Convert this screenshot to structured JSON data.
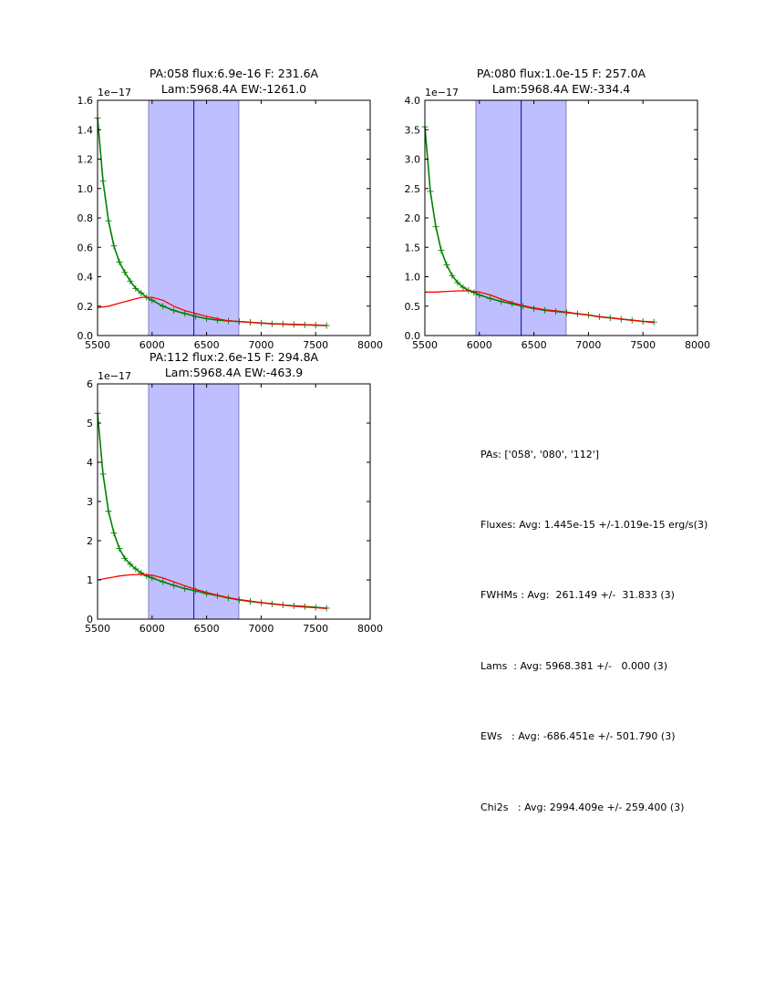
{
  "chart_data": [
    {
      "type": "line",
      "title_line1": "PA:058 flux:6.9e-16 F: 231.6A",
      "title_line2": "Lam:5968.4A EW:-1261.0",
      "offset_label": "1e−17",
      "xlim": [
        5500,
        8000
      ],
      "ylim": [
        0,
        1.6
      ],
      "xticks": [
        "5500",
        "6000",
        "6500",
        "7000",
        "7500",
        "8000"
      ],
      "xtick_values": [
        5500,
        6000,
        6500,
        7000,
        7500,
        8000
      ],
      "yticks": [
        "0.0",
        "0.2",
        "0.4",
        "0.6",
        "0.8",
        "1.0",
        "1.2",
        "1.4",
        "1.6"
      ],
      "ytick_values": [
        0,
        0.2,
        0.4,
        0.6,
        0.8,
        1.0,
        1.2,
        1.4,
        1.6
      ],
      "band": [
        5968,
        6795
      ],
      "center_line": 6383,
      "series": [
        {
          "name": "data",
          "color": "#008000",
          "x": [
            5500,
            5550,
            5600,
            5650,
            5700,
            5750,
            5800,
            5850,
            5900,
            5950,
            6000,
            6100,
            6200,
            6300,
            6400,
            6500,
            6600,
            6700,
            6800,
            6900,
            7000,
            7100,
            7200,
            7300,
            7400,
            7500,
            7600
          ],
          "y": [
            1.48,
            1.05,
            0.78,
            0.61,
            0.5,
            0.43,
            0.37,
            0.32,
            0.29,
            0.26,
            0.24,
            0.2,
            0.17,
            0.15,
            0.13,
            0.115,
            0.105,
            0.1,
            0.095,
            0.09,
            0.085,
            0.08,
            0.078,
            0.075,
            0.073,
            0.07,
            0.068
          ]
        },
        {
          "name": "model",
          "color": "#ff0000",
          "x": [
            5500,
            5600,
            5700,
            5800,
            5900,
            6000,
            6100,
            6200,
            6300,
            6400,
            6500,
            6600,
            6700,
            6800,
            6900,
            7000,
            7100,
            7200,
            7300,
            7400,
            7500,
            7600
          ],
          "y": [
            0.19,
            0.2,
            0.22,
            0.24,
            0.26,
            0.26,
            0.24,
            0.2,
            0.17,
            0.15,
            0.13,
            0.115,
            0.1,
            0.095,
            0.09,
            0.085,
            0.08,
            0.078,
            0.076,
            0.074,
            0.072,
            0.068
          ]
        }
      ]
    },
    {
      "type": "line",
      "title_line1": "PA:080 flux:1.0e-15 F: 257.0A",
      "title_line2": "Lam:5968.4A EW:-334.4",
      "offset_label": "1e−17",
      "xlim": [
        5500,
        8000
      ],
      "ylim": [
        0,
        4.0
      ],
      "xticks": [
        "5500",
        "6000",
        "6500",
        "7000",
        "7500",
        "8000"
      ],
      "xtick_values": [
        5500,
        6000,
        6500,
        7000,
        7500,
        8000
      ],
      "yticks": [
        "0.0",
        "0.5",
        "1.0",
        "1.5",
        "2.0",
        "2.5",
        "3.0",
        "3.5",
        "4.0"
      ],
      "ytick_values": [
        0,
        0.5,
        1.0,
        1.5,
        2.0,
        2.5,
        3.0,
        3.5,
        4.0
      ],
      "band": [
        5968,
        6795
      ],
      "center_line": 6383,
      "series": [
        {
          "name": "data",
          "color": "#008000",
          "x": [
            5500,
            5550,
            5600,
            5650,
            5700,
            5750,
            5800,
            5850,
            5900,
            5950,
            6000,
            6100,
            6200,
            6300,
            6400,
            6500,
            6600,
            6700,
            6800,
            6900,
            7000,
            7100,
            7200,
            7300,
            7400,
            7500,
            7600
          ],
          "y": [
            3.55,
            2.45,
            1.85,
            1.45,
            1.2,
            1.02,
            0.9,
            0.82,
            0.77,
            0.73,
            0.69,
            0.63,
            0.58,
            0.54,
            0.5,
            0.46,
            0.43,
            0.41,
            0.39,
            0.37,
            0.35,
            0.32,
            0.3,
            0.28,
            0.26,
            0.24,
            0.23
          ]
        },
        {
          "name": "model",
          "color": "#ff0000",
          "x": [
            5500,
            5600,
            5700,
            5800,
            5900,
            6000,
            6100,
            6200,
            6300,
            6400,
            6500,
            6600,
            6700,
            6800,
            6900,
            7000,
            7100,
            7200,
            7300,
            7400,
            7500,
            7600
          ],
          "y": [
            0.74,
            0.74,
            0.75,
            0.76,
            0.76,
            0.74,
            0.69,
            0.62,
            0.56,
            0.51,
            0.47,
            0.44,
            0.42,
            0.4,
            0.37,
            0.35,
            0.32,
            0.3,
            0.28,
            0.26,
            0.24,
            0.22
          ]
        }
      ]
    },
    {
      "type": "line",
      "title_line1": "PA:112 flux:2.6e-15 F: 294.8A",
      "title_line2": "Lam:5968.4A EW:-463.9",
      "offset_label": "1e−17",
      "xlim": [
        5500,
        8000
      ],
      "ylim": [
        0,
        6
      ],
      "xticks": [
        "5500",
        "6000",
        "6500",
        "7000",
        "7500",
        "8000"
      ],
      "xtick_values": [
        5500,
        6000,
        6500,
        7000,
        7500,
        8000
      ],
      "yticks": [
        "0",
        "1",
        "2",
        "3",
        "4",
        "5",
        "6"
      ],
      "ytick_values": [
        0,
        1,
        2,
        3,
        4,
        5,
        6
      ],
      "band": [
        5968,
        6795
      ],
      "center_line": 6383,
      "series": [
        {
          "name": "data",
          "color": "#008000",
          "x": [
            5500,
            5550,
            5600,
            5650,
            5700,
            5750,
            5800,
            5850,
            5900,
            5950,
            6000,
            6100,
            6200,
            6300,
            6400,
            6500,
            6600,
            6700,
            6800,
            6900,
            7000,
            7100,
            7200,
            7300,
            7400,
            7500,
            7600
          ],
          "y": [
            5.25,
            3.7,
            2.75,
            2.2,
            1.8,
            1.55,
            1.4,
            1.28,
            1.18,
            1.1,
            1.05,
            0.95,
            0.86,
            0.78,
            0.72,
            0.65,
            0.6,
            0.54,
            0.49,
            0.45,
            0.42,
            0.39,
            0.36,
            0.34,
            0.32,
            0.3,
            0.28
          ]
        },
        {
          "name": "model",
          "color": "#ff0000",
          "x": [
            5500,
            5600,
            5700,
            5800,
            5900,
            6000,
            6100,
            6200,
            6300,
            6400,
            6500,
            6600,
            6700,
            6800,
            6900,
            7000,
            7100,
            7200,
            7300,
            7400,
            7500,
            7600
          ],
          "y": [
            1.0,
            1.05,
            1.1,
            1.13,
            1.14,
            1.12,
            1.05,
            0.95,
            0.85,
            0.76,
            0.68,
            0.61,
            0.55,
            0.5,
            0.46,
            0.42,
            0.39,
            0.36,
            0.33,
            0.31,
            0.29,
            0.27
          ]
        }
      ]
    }
  ],
  "summary": {
    "pas": "PAs: ['058', '080', '112']",
    "fluxes": "Fluxes: Avg: 1.445e-15 +/-1.019e-15 erg/s(3)",
    "fwhms": "FWHMs : Avg:  261.149 +/-  31.833 (3)",
    "lams": "Lams  : Avg: 5968.381 +/-   0.000 (3)",
    "ews": "EWs   : Avg: -686.451e +/- 501.790 (3)",
    "chi2s": "Chi2s   : Avg: 2994.409e +/- 259.400 (3)"
  },
  "colors": {
    "band_fill": "#bfbfff",
    "band_edge": "#7f7fbf",
    "center_line": "#0000cc",
    "axes": "#000000"
  }
}
